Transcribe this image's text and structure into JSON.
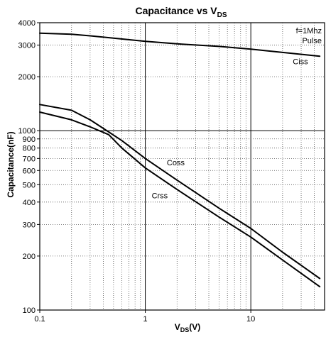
{
  "chart_data": {
    "type": "line",
    "title_main": "Capacitance vs V",
    "title_sub": "DS",
    "xlabel_main": "V",
    "xlabel_sub": "DS",
    "xlabel_unit": "(V)",
    "ylabel": "Capacitance(nF)",
    "x_scale": "log",
    "y_scale": "log",
    "xlim": [
      0.1,
      50
    ],
    "ylim": [
      100,
      4000
    ],
    "x_ticks": [
      0.1,
      1,
      10
    ],
    "x_tick_labels": [
      "0.1",
      "1",
      "10"
    ],
    "y_ticks": [
      100,
      200,
      300,
      400,
      500,
      600,
      700,
      800,
      900,
      1000,
      2000,
      3000,
      4000
    ],
    "y_tick_labels": [
      "100",
      "200",
      "300",
      "400",
      "500",
      "600",
      "700",
      "800",
      "900",
      "1000",
      "2000",
      "3000",
      "4000"
    ],
    "grid": true,
    "annotation": [
      "f=1Mhz",
      "Pulse"
    ],
    "series": [
      {
        "name": "Ciss",
        "x": [
          0.1,
          0.2,
          0.3,
          0.5,
          1,
          2,
          5,
          10,
          20,
          45
        ],
        "y": [
          3500,
          3450,
          3380,
          3280,
          3150,
          3050,
          2950,
          2850,
          2730,
          2600
        ]
      },
      {
        "name": "Coss",
        "x": [
          0.1,
          0.2,
          0.3,
          0.4,
          0.6,
          1,
          2,
          5,
          10,
          20,
          45
        ],
        "y": [
          1400,
          1300,
          1150,
          1030,
          880,
          700,
          530,
          370,
          285,
          210,
          150
        ]
      },
      {
        "name": "Crss",
        "x": [
          0.1,
          0.2,
          0.3,
          0.45,
          0.6,
          1,
          2,
          5,
          10,
          20,
          45
        ],
        "y": [
          1270,
          1150,
          1050,
          950,
          800,
          620,
          470,
          330,
          255,
          190,
          135
        ]
      }
    ]
  }
}
